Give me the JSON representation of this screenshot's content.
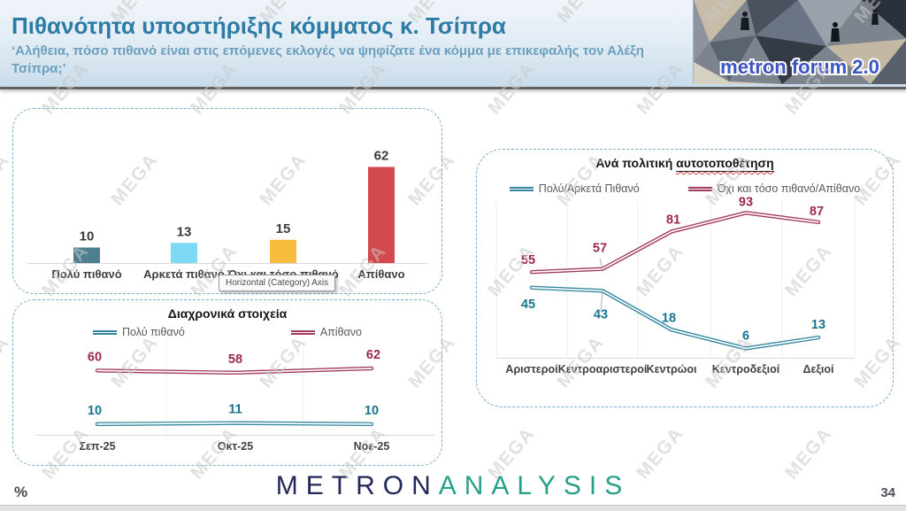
{
  "header": {
    "title": "Πιθανότητα υποστήριξης κόμματος κ. Τσίπρα",
    "subtitle": "‘Αλήθεια, πόσο πιθανό είναι στις επόμενες εκλογές να ψηφίζατε ένα κόμμα με επικεφαλής τον Αλέξη Τσίπρα;’",
    "logo_text": "metron forum 2.0"
  },
  "watermark": "MEGA",
  "tooltip": "Horizontal (Category) Axis",
  "footer": {
    "percent_label": "%",
    "brand_part1": "METRON",
    "brand_part2": "ANALYSIS",
    "page_number": "34"
  },
  "colors": {
    "accent_title": "#2d7ca6",
    "teal_line": "#35879e",
    "red_line": "#a23a5e",
    "teal_label": "#17748f",
    "red_label": "#9c2850"
  },
  "chart_data": [
    {
      "type": "bar",
      "title": "",
      "categories": [
        "Πολύ πιθανό",
        "Αρκετά πιθανό",
        "Όχι και τόσο πιθανό",
        "Απίθανο"
      ],
      "values": [
        10,
        13,
        15,
        62
      ],
      "colors": [
        "#4d7f91",
        "#7ed9f5",
        "#f7bb3d",
        "#d24a4e"
      ],
      "ylim": [
        0,
        70
      ],
      "grid": false,
      "data_labels": true
    },
    {
      "type": "line",
      "title": "Διαχρονικά στοιχεία",
      "categories": [
        "Σεπ-25",
        "Οκτ-25",
        "Νοε-25"
      ],
      "series": [
        {
          "name": "Πολύ πιθανό",
          "values": [
            10,
            11,
            10
          ],
          "color": "#35879e",
          "label_color": "#17748f"
        },
        {
          "name": "Απίθανο",
          "values": [
            60,
            58,
            62
          ],
          "color": "#a23a5e",
          "label_color": "#9c2850"
        }
      ],
      "ylim": [
        0,
        70
      ],
      "legend_position": "top",
      "data_labels": true
    },
    {
      "type": "line",
      "title": "Ανά πολιτική αυτοτοποθέτηση",
      "title_plain": "Ανά πολιτική",
      "title_underlined": "αυτοτοποθέτηση",
      "categories": [
        "Αριστεροί",
        "Κεντροαριστεροί",
        "Κεντρώοι",
        "Κεντροδεξιοί",
        "Δεξιοί"
      ],
      "series": [
        {
          "name": "Πολύ/Αρκετά Πιθανό",
          "values": [
            45,
            43,
            18,
            6,
            13
          ],
          "color": "#35879e",
          "label_color": "#17748f"
        },
        {
          "name": "Όχι και τόσο πιθανό/Απίθανο",
          "values": [
            55,
            57,
            81,
            93,
            87
          ],
          "color": "#a23a5e",
          "label_color": "#9c2850"
        }
      ],
      "ylim": [
        0,
        100
      ],
      "legend_position": "top",
      "data_labels": true
    }
  ]
}
